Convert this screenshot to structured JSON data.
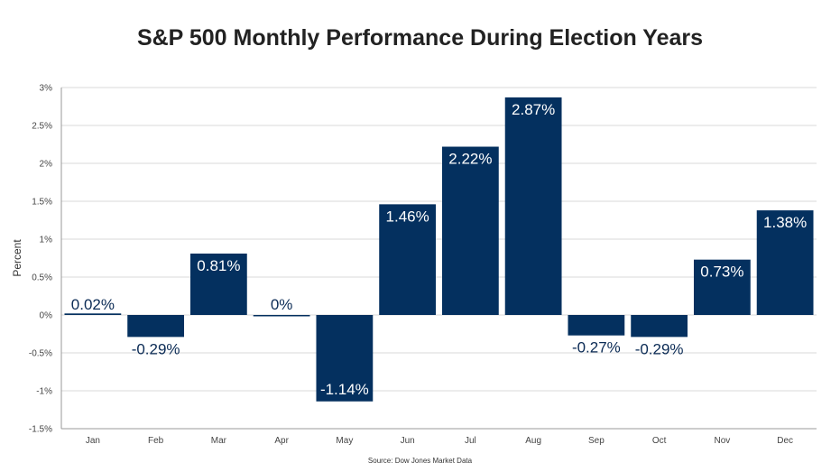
{
  "title": "S&P 500 Monthly Performance During Election Years",
  "source": "Source: Dow Jones Market Data",
  "colors": {
    "bar": "#04305f",
    "label_inside": "#ffffff",
    "label_outside": "#0b2b55"
  },
  "chart_data": {
    "type": "bar",
    "title": "S&P 500 Monthly Performance During Election Years",
    "xlabel": "",
    "ylabel": "Percent",
    "ylim": [
      -1.5,
      3
    ],
    "yticks": [
      3,
      2.5,
      2,
      1.5,
      1,
      0.5,
      0,
      -0.5,
      -1,
      -1.5
    ],
    "ytick_labels": [
      "3%",
      "2.5%",
      "2%",
      "1.5%",
      "1%",
      "0.5%",
      "0%",
      "-0.5%",
      "-1%",
      "-1.5%"
    ],
    "categories": [
      "Jan",
      "Feb",
      "Mar",
      "Apr",
      "May",
      "Jun",
      "Jul",
      "Aug",
      "Sep",
      "Oct",
      "Nov",
      "Dec"
    ],
    "values": [
      0.02,
      -0.29,
      0.81,
      0,
      -1.14,
      1.46,
      2.22,
      2.87,
      -0.27,
      -0.29,
      0.73,
      1.38
    ],
    "data_labels": [
      "0.02%",
      "-0.29%",
      "0.81%",
      "0%",
      "-1.14%",
      "1.46%",
      "2.22%",
      "2.87%",
      "-0.27%",
      "-0.29%",
      "0.73%",
      "1.38%"
    ],
    "grid": true,
    "legend": "none"
  }
}
